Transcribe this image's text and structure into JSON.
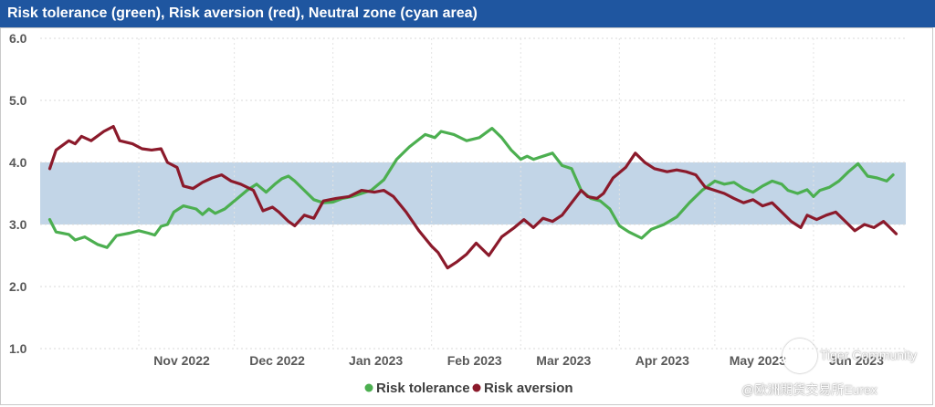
{
  "watermark": {
    "community": "Tiger Community",
    "handle": "@欧洲期货交易所Eurex"
  },
  "chart_data": {
    "type": "line",
    "title": "Risk tolerance (green), Risk aversion (red), Neutral zone (cyan area)",
    "ylim": [
      1.0,
      6.0
    ],
    "yticks": [
      "1.0",
      "2.0",
      "3.0",
      "4.0",
      "5.0",
      "6.0"
    ],
    "xlim": [
      "2022-10-01",
      "2023-06-30"
    ],
    "xticks": [
      {
        "label": "Nov 2022",
        "date": "2022-11-01"
      },
      {
        "label": "Dec 2022",
        "date": "2022-12-01"
      },
      {
        "label": "Jan 2023",
        "date": "2023-01-01"
      },
      {
        "label": "Feb 2023",
        "date": "2023-02-01"
      },
      {
        "label": "Mar 2023",
        "date": "2023-03-01"
      },
      {
        "label": "Apr 2023",
        "date": "2023-04-01"
      },
      {
        "label": "May 2023",
        "date": "2023-05-01"
      },
      {
        "label": "Jun 2023",
        "date": "2023-06-01"
      }
    ],
    "neutral_zone": [
      3.0,
      4.0
    ],
    "grid": true,
    "legend": "bottom-center",
    "colors": {
      "tolerance": "#4caf50",
      "aversion": "#8b1a2b",
      "zone": "#c2d5e7"
    },
    "series": [
      {
        "name": "Risk tolerance",
        "points": [
          [
            "2022-10-04",
            3.08
          ],
          [
            "2022-10-06",
            2.88
          ],
          [
            "2022-10-10",
            2.84
          ],
          [
            "2022-10-12",
            2.75
          ],
          [
            "2022-10-15",
            2.8
          ],
          [
            "2022-10-19",
            2.68
          ],
          [
            "2022-10-22",
            2.63
          ],
          [
            "2022-10-25",
            2.82
          ],
          [
            "2022-10-29",
            2.86
          ],
          [
            "2022-11-01",
            2.9
          ],
          [
            "2022-11-04",
            2.86
          ],
          [
            "2022-11-06",
            2.83
          ],
          [
            "2022-11-08",
            2.97
          ],
          [
            "2022-11-10",
            3.0
          ],
          [
            "2022-11-12",
            3.2
          ],
          [
            "2022-11-15",
            3.3
          ],
          [
            "2022-11-19",
            3.25
          ],
          [
            "2022-11-21",
            3.16
          ],
          [
            "2022-11-23",
            3.25
          ],
          [
            "2022-11-25",
            3.18
          ],
          [
            "2022-11-28",
            3.25
          ],
          [
            "2022-12-02",
            3.42
          ],
          [
            "2022-12-05",
            3.55
          ],
          [
            "2022-12-08",
            3.65
          ],
          [
            "2022-12-11",
            3.52
          ],
          [
            "2022-12-14",
            3.66
          ],
          [
            "2022-12-16",
            3.74
          ],
          [
            "2022-12-18",
            3.78
          ],
          [
            "2022-12-20",
            3.7
          ],
          [
            "2022-12-23",
            3.55
          ],
          [
            "2022-12-26",
            3.4
          ],
          [
            "2022-12-29",
            3.35
          ],
          [
            "2023-01-01",
            3.36
          ],
          [
            "2023-01-04",
            3.42
          ],
          [
            "2023-01-07",
            3.45
          ],
          [
            "2023-01-10",
            3.5
          ],
          [
            "2023-01-13",
            3.55
          ],
          [
            "2023-01-17",
            3.72
          ],
          [
            "2023-01-21",
            4.05
          ],
          [
            "2023-01-25",
            4.25
          ],
          [
            "2023-01-30",
            4.45
          ],
          [
            "2023-02-02",
            4.4
          ],
          [
            "2023-02-04",
            4.5
          ],
          [
            "2023-02-08",
            4.45
          ],
          [
            "2023-02-12",
            4.35
          ],
          [
            "2023-02-16",
            4.4
          ],
          [
            "2023-02-20",
            4.55
          ],
          [
            "2023-02-23",
            4.4
          ],
          [
            "2023-02-26",
            4.2
          ],
          [
            "2023-03-01",
            4.05
          ],
          [
            "2023-03-03",
            4.1
          ],
          [
            "2023-03-05",
            4.05
          ],
          [
            "2023-03-08",
            4.1
          ],
          [
            "2023-03-11",
            4.15
          ],
          [
            "2023-03-14",
            3.95
          ],
          [
            "2023-03-17",
            3.9
          ],
          [
            "2023-03-20",
            3.55
          ],
          [
            "2023-03-23",
            3.42
          ],
          [
            "2023-03-26",
            3.38
          ],
          [
            "2023-03-29",
            3.25
          ],
          [
            "2023-04-01",
            2.98
          ],
          [
            "2023-04-04",
            2.88
          ],
          [
            "2023-04-08",
            2.78
          ],
          [
            "2023-04-11",
            2.92
          ],
          [
            "2023-04-15",
            3.0
          ],
          [
            "2023-04-19",
            3.12
          ],
          [
            "2023-04-23",
            3.35
          ],
          [
            "2023-04-27",
            3.55
          ],
          [
            "2023-05-01",
            3.7
          ],
          [
            "2023-05-04",
            3.65
          ],
          [
            "2023-05-07",
            3.68
          ],
          [
            "2023-05-10",
            3.58
          ],
          [
            "2023-05-13",
            3.52
          ],
          [
            "2023-05-16",
            3.62
          ],
          [
            "2023-05-19",
            3.7
          ],
          [
            "2023-05-22",
            3.65
          ],
          [
            "2023-05-24",
            3.55
          ],
          [
            "2023-05-27",
            3.5
          ],
          [
            "2023-05-30",
            3.56
          ],
          [
            "2023-06-01",
            3.45
          ],
          [
            "2023-06-03",
            3.55
          ],
          [
            "2023-06-06",
            3.6
          ],
          [
            "2023-06-09",
            3.7
          ],
          [
            "2023-06-12",
            3.85
          ],
          [
            "2023-06-15",
            3.98
          ],
          [
            "2023-06-18",
            3.78
          ],
          [
            "2023-06-21",
            3.75
          ],
          [
            "2023-06-24",
            3.7
          ],
          [
            "2023-06-26",
            3.8
          ]
        ]
      },
      {
        "name": "Risk aversion",
        "points": [
          [
            "2022-10-04",
            3.9
          ],
          [
            "2022-10-06",
            4.2
          ],
          [
            "2022-10-10",
            4.35
          ],
          [
            "2022-10-12",
            4.3
          ],
          [
            "2022-10-14",
            4.42
          ],
          [
            "2022-10-17",
            4.35
          ],
          [
            "2022-10-21",
            4.5
          ],
          [
            "2022-10-24",
            4.58
          ],
          [
            "2022-10-26",
            4.35
          ],
          [
            "2022-10-30",
            4.3
          ],
          [
            "2022-11-02",
            4.22
          ],
          [
            "2022-11-05",
            4.2
          ],
          [
            "2022-11-08",
            4.22
          ],
          [
            "2022-11-10",
            4.0
          ],
          [
            "2022-11-13",
            3.92
          ],
          [
            "2022-11-15",
            3.62
          ],
          [
            "2022-11-18",
            3.58
          ],
          [
            "2022-11-21",
            3.68
          ],
          [
            "2022-11-24",
            3.75
          ],
          [
            "2022-11-27",
            3.8
          ],
          [
            "2022-11-30",
            3.7
          ],
          [
            "2022-12-03",
            3.65
          ],
          [
            "2022-12-07",
            3.55
          ],
          [
            "2022-12-10",
            3.22
          ],
          [
            "2022-12-13",
            3.28
          ],
          [
            "2022-12-15",
            3.2
          ],
          [
            "2022-12-18",
            3.05
          ],
          [
            "2022-12-20",
            2.98
          ],
          [
            "2022-12-23",
            3.15
          ],
          [
            "2022-12-26",
            3.1
          ],
          [
            "2022-12-29",
            3.38
          ],
          [
            "2023-01-02",
            3.42
          ],
          [
            "2023-01-06",
            3.45
          ],
          [
            "2023-01-10",
            3.55
          ],
          [
            "2023-01-14",
            3.52
          ],
          [
            "2023-01-17",
            3.55
          ],
          [
            "2023-01-20",
            3.45
          ],
          [
            "2023-01-24",
            3.2
          ],
          [
            "2023-01-28",
            2.9
          ],
          [
            "2023-02-01",
            2.65
          ],
          [
            "2023-02-03",
            2.55
          ],
          [
            "2023-02-06",
            2.3
          ],
          [
            "2023-02-09",
            2.4
          ],
          [
            "2023-02-12",
            2.52
          ],
          [
            "2023-02-15",
            2.7
          ],
          [
            "2023-02-19",
            2.5
          ],
          [
            "2023-02-23",
            2.8
          ],
          [
            "2023-02-27",
            2.95
          ],
          [
            "2023-03-02",
            3.08
          ],
          [
            "2023-03-05",
            2.95
          ],
          [
            "2023-03-08",
            3.1
          ],
          [
            "2023-03-11",
            3.05
          ],
          [
            "2023-03-14",
            3.15
          ],
          [
            "2023-03-17",
            3.35
          ],
          [
            "2023-03-20",
            3.55
          ],
          [
            "2023-03-22",
            3.45
          ],
          [
            "2023-03-25",
            3.42
          ],
          [
            "2023-03-27",
            3.5
          ],
          [
            "2023-03-30",
            3.75
          ],
          [
            "2023-04-03",
            3.92
          ],
          [
            "2023-04-06",
            4.15
          ],
          [
            "2023-04-09",
            4.0
          ],
          [
            "2023-04-12",
            3.9
          ],
          [
            "2023-04-16",
            3.85
          ],
          [
            "2023-04-19",
            3.88
          ],
          [
            "2023-04-22",
            3.85
          ],
          [
            "2023-04-25",
            3.8
          ],
          [
            "2023-04-28",
            3.6
          ],
          [
            "2023-05-01",
            3.55
          ],
          [
            "2023-05-04",
            3.5
          ],
          [
            "2023-05-07",
            3.42
          ],
          [
            "2023-05-10",
            3.35
          ],
          [
            "2023-05-13",
            3.4
          ],
          [
            "2023-05-16",
            3.3
          ],
          [
            "2023-05-19",
            3.35
          ],
          [
            "2023-05-22",
            3.2
          ],
          [
            "2023-05-25",
            3.05
          ],
          [
            "2023-05-28",
            2.95
          ],
          [
            "2023-05-30",
            3.15
          ],
          [
            "2023-06-02",
            3.08
          ],
          [
            "2023-06-05",
            3.15
          ],
          [
            "2023-06-08",
            3.2
          ],
          [
            "2023-06-11",
            3.05
          ],
          [
            "2023-06-14",
            2.9
          ],
          [
            "2023-06-17",
            3.0
          ],
          [
            "2023-06-20",
            2.95
          ],
          [
            "2023-06-23",
            3.05
          ],
          [
            "2023-06-25",
            2.95
          ],
          [
            "2023-06-27",
            2.85
          ]
        ]
      }
    ]
  }
}
